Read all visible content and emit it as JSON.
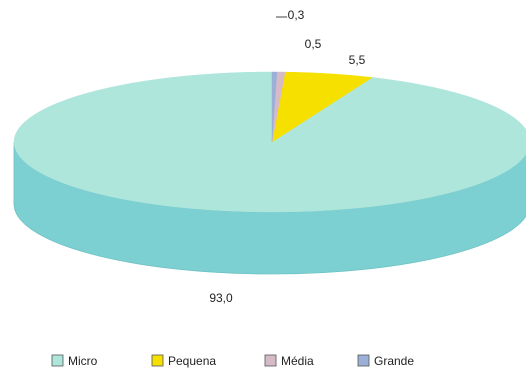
{
  "chart_data": {
    "type": "pie",
    "style": "3d",
    "title": "",
    "categories": [
      "Micro",
      "Pequena",
      "Média",
      "Grande"
    ],
    "values": [
      93.0,
      5.5,
      0.5,
      0.3
    ],
    "value_labels": [
      "93,0",
      "5,5",
      "0,5",
      "0,3"
    ],
    "colors": [
      "#aee6dc",
      "#f6e000",
      "#d7bac8",
      "#9bb0d6"
    ],
    "side_color": "#7dd0d2",
    "legend_position": "bottom"
  }
}
